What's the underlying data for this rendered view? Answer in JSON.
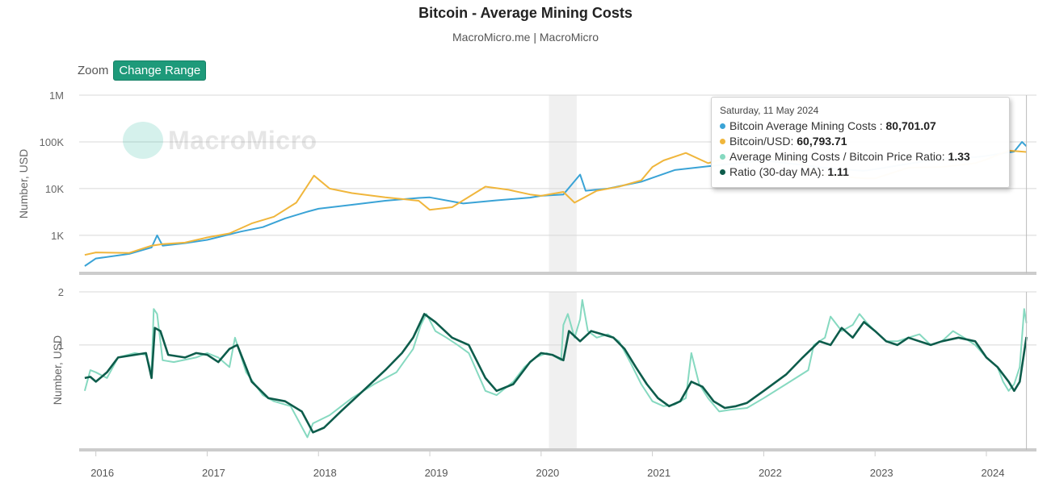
{
  "title": "Bitcoin - Average Mining Costs",
  "subtitle": "MacroMicro.me | MacroMicro",
  "zoom": {
    "label": "Zoom",
    "button": "Change Range"
  },
  "watermark": "MacroMicro",
  "tooltip": {
    "date": "Saturday, 11 May 2024",
    "rows": [
      {
        "label": "Bitcoin Average Mining Costs",
        "sep": " : ",
        "value": "80,701.07",
        "color": "#3aa3d6"
      },
      {
        "label": "Bitcoin/USD",
        "sep": ": ",
        "value": "60,793.71",
        "color": "#f0b63c"
      },
      {
        "label": "Average Mining Costs / Bitcoin Price Ratio",
        "sep": ": ",
        "value": "1.33",
        "color": "#86d9c0"
      },
      {
        "label": "Ratio (30-day MA)",
        "sep": ": ",
        "value": "1.11",
        "color": "#0d5c4b"
      }
    ]
  },
  "chart_data": [
    {
      "type": "line",
      "ylabel": "Number, USD",
      "yscale": "log",
      "ylim": [
        160,
        1000000
      ],
      "yticks": [
        {
          "v": 1000,
          "label": "1K"
        },
        {
          "v": 10000,
          "label": "10K"
        },
        {
          "v": 100000,
          "label": "100K"
        },
        {
          "v": 1000000,
          "label": "1M"
        }
      ],
      "xlim": [
        2015.85,
        2024.45
      ],
      "shaded_band": [
        2020.07,
        2020.32
      ],
      "series": [
        {
          "name": "Bitcoin Average Mining Costs",
          "color": "#3aa3d6",
          "x": [
            2015.9,
            2016.0,
            2016.3,
            2016.5,
            2016.55,
            2016.6,
            2016.8,
            2017.0,
            2017.3,
            2017.5,
            2017.7,
            2017.9,
            2018.0,
            2018.3,
            2018.6,
            2018.9,
            2019.0,
            2019.3,
            2019.6,
            2019.9,
            2020.0,
            2020.2,
            2020.35,
            2020.4,
            2020.6,
            2020.9,
            2021.0,
            2021.2,
            2021.5,
            2021.9,
            2022.0,
            2022.3,
            2022.6,
            2022.9,
            2023.0,
            2023.3,
            2023.6,
            2023.9,
            2024.0,
            2024.25,
            2024.32,
            2024.36
          ],
          "y": [
            220,
            320,
            400,
            550,
            1000,
            600,
            680,
            800,
            1200,
            1500,
            2300,
            3200,
            3700,
            4500,
            5500,
            6300,
            6500,
            4800,
            5600,
            6400,
            7000,
            7500,
            20000,
            9000,
            10000,
            14000,
            17000,
            25000,
            30000,
            38000,
            40000,
            33000,
            27000,
            24000,
            26000,
            34000,
            44000,
            47000,
            50000,
            62000,
            100000,
            80701
          ]
        },
        {
          "name": "Bitcoin/USD",
          "color": "#f0b63c",
          "x": [
            2015.9,
            2016.0,
            2016.3,
            2016.5,
            2016.6,
            2016.8,
            2017.0,
            2017.2,
            2017.4,
            2017.6,
            2017.8,
            2017.96,
            2018.1,
            2018.3,
            2018.6,
            2018.9,
            2019.0,
            2019.2,
            2019.5,
            2019.7,
            2019.9,
            2020.0,
            2020.2,
            2020.3,
            2020.5,
            2020.7,
            2020.9,
            2021.0,
            2021.1,
            2021.3,
            2021.5,
            2021.85,
            2022.0,
            2022.3,
            2022.5,
            2022.9,
            2023.0,
            2023.3,
            2023.6,
            2023.9,
            2024.0,
            2024.2,
            2024.36
          ],
          "y": [
            380,
            430,
            420,
            600,
            650,
            700,
            900,
            1100,
            1800,
            2500,
            5000,
            19000,
            10000,
            8000,
            6500,
            5500,
            3500,
            4000,
            11000,
            9500,
            7500,
            7000,
            8500,
            5000,
            9000,
            11000,
            15000,
            29000,
            40000,
            58000,
            35000,
            60000,
            45000,
            40000,
            20000,
            16500,
            16500,
            28000,
            29000,
            35000,
            42000,
            65000,
            60793
          ]
        }
      ]
    },
    {
      "type": "line",
      "ylabel": "Number, USD",
      "yscale": "log",
      "ylim": [
        0.26,
        2
      ],
      "yticks": [
        {
          "v": 1,
          "label": "1"
        },
        {
          "v": 2,
          "label": "2"
        }
      ],
      "xlim": [
        2015.85,
        2024.45
      ],
      "xticks": [
        2016,
        2017,
        2018,
        2019,
        2020,
        2021,
        2022,
        2023,
        2024
      ],
      "xtick_labels": [
        "2016",
        "2017",
        "2018",
        "2019",
        "2020",
        "2021",
        "2022",
        "2023",
        "2024"
      ],
      "shaded_band": [
        2020.07,
        2020.32
      ],
      "series": [
        {
          "name": "Average Mining Costs / Bitcoin Price Ratio",
          "color": "#86d9c0",
          "x": [
            2015.9,
            2015.95,
            2016.0,
            2016.1,
            2016.2,
            2016.35,
            2016.45,
            2016.5,
            2016.52,
            2016.55,
            2016.6,
            2016.7,
            2016.9,
            2017.0,
            2017.1,
            2017.2,
            2017.25,
            2017.35,
            2017.5,
            2017.6,
            2017.75,
            2017.9,
            2017.95,
            2018.1,
            2018.3,
            2018.5,
            2018.7,
            2018.85,
            2018.92,
            2018.97,
            2019.05,
            2019.15,
            2019.25,
            2019.35,
            2019.5,
            2019.6,
            2019.75,
            2019.85,
            2019.95,
            2020.05,
            2020.1,
            2020.18,
            2020.2,
            2020.24,
            2020.3,
            2020.35,
            2020.37,
            2020.42,
            2020.5,
            2020.6,
            2020.7,
            2020.8,
            2020.9,
            2021.0,
            2021.1,
            2021.2,
            2021.3,
            2021.35,
            2021.42,
            2021.5,
            2021.6,
            2021.7,
            2021.85,
            2022.0,
            2022.2,
            2022.4,
            2022.45,
            2022.55,
            2022.6,
            2022.7,
            2022.8,
            2022.86,
            2022.92,
            2023.0,
            2023.1,
            2023.2,
            2023.3,
            2023.4,
            2023.5,
            2023.6,
            2023.7,
            2023.8,
            2023.9,
            2024.0,
            2024.1,
            2024.15,
            2024.2,
            2024.25,
            2024.3,
            2024.34,
            2024.36
          ],
          "y": [
            0.55,
            0.72,
            0.7,
            0.65,
            0.85,
            0.9,
            0.88,
            0.7,
            1.6,
            1.5,
            0.82,
            0.8,
            0.85,
            0.9,
            0.85,
            0.75,
            1.1,
            0.7,
            0.52,
            0.48,
            0.45,
            0.3,
            0.36,
            0.4,
            0.5,
            0.6,
            0.7,
            0.95,
            1.3,
            1.5,
            1.2,
            1.1,
            1.0,
            0.9,
            0.55,
            0.52,
            0.62,
            0.75,
            0.85,
            0.9,
            0.88,
            0.82,
            1.3,
            1.5,
            1.1,
            1.4,
            1.8,
            1.2,
            1.1,
            1.15,
            1.05,
            0.8,
            0.6,
            0.48,
            0.45,
            0.46,
            0.5,
            0.9,
            0.6,
            0.5,
            0.42,
            0.43,
            0.44,
            0.5,
            0.6,
            0.72,
            1.0,
            1.1,
            1.45,
            1.2,
            1.3,
            1.5,
            1.35,
            1.2,
            1.05,
            1.05,
            1.1,
            1.15,
            1.0,
            1.05,
            1.2,
            1.1,
            1.0,
            0.85,
            0.75,
            0.62,
            0.55,
            0.6,
            0.75,
            1.6,
            1.33
          ]
        },
        {
          "name": "Ratio (30-day MA)",
          "color": "#0d5c4b",
          "x": [
            2015.9,
            2015.95,
            2016.0,
            2016.1,
            2016.2,
            2016.35,
            2016.45,
            2016.5,
            2016.53,
            2016.58,
            2016.65,
            2016.8,
            2016.9,
            2017.0,
            2017.1,
            2017.2,
            2017.27,
            2017.4,
            2017.55,
            2017.7,
            2017.85,
            2017.95,
            2018.05,
            2018.2,
            2018.4,
            2018.6,
            2018.75,
            2018.85,
            2018.95,
            2019.05,
            2019.2,
            2019.35,
            2019.5,
            2019.6,
            2019.75,
            2019.9,
            2020.0,
            2020.1,
            2020.2,
            2020.25,
            2020.35,
            2020.45,
            2020.55,
            2020.65,
            2020.75,
            2020.85,
            2020.95,
            2021.05,
            2021.15,
            2021.25,
            2021.35,
            2021.45,
            2021.55,
            2021.65,
            2021.75,
            2021.85,
            2022.0,
            2022.2,
            2022.35,
            2022.5,
            2022.6,
            2022.7,
            2022.8,
            2022.9,
            2023.0,
            2023.1,
            2023.2,
            2023.3,
            2023.5,
            2023.6,
            2023.75,
            2023.9,
            2024.0,
            2024.1,
            2024.2,
            2024.25,
            2024.3,
            2024.36
          ],
          "y": [
            0.65,
            0.66,
            0.62,
            0.7,
            0.85,
            0.88,
            0.9,
            0.65,
            1.25,
            1.2,
            0.88,
            0.85,
            0.9,
            0.88,
            0.8,
            0.95,
            1.0,
            0.62,
            0.5,
            0.48,
            0.42,
            0.32,
            0.34,
            0.42,
            0.55,
            0.72,
            0.9,
            1.1,
            1.5,
            1.35,
            1.1,
            1.0,
            0.65,
            0.55,
            0.6,
            0.8,
            0.9,
            0.88,
            0.82,
            1.2,
            1.05,
            1.2,
            1.15,
            1.1,
            0.95,
            0.75,
            0.6,
            0.5,
            0.45,
            0.48,
            0.62,
            0.58,
            0.48,
            0.44,
            0.45,
            0.47,
            0.55,
            0.68,
            0.85,
            1.05,
            1.0,
            1.25,
            1.1,
            1.35,
            1.2,
            1.05,
            1.0,
            1.1,
            1.0,
            1.05,
            1.1,
            1.05,
            0.85,
            0.75,
            0.62,
            0.55,
            0.62,
            1.11
          ]
        }
      ]
    }
  ]
}
